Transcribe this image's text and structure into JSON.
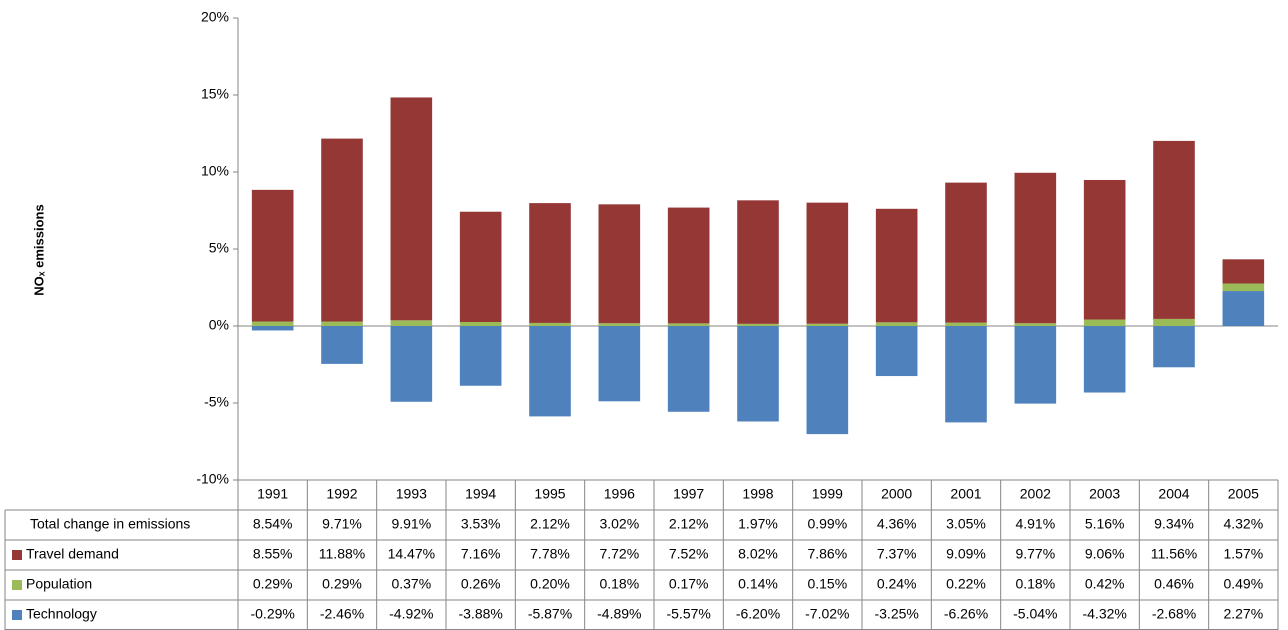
{
  "chart_data": {
    "type": "bar",
    "stacked": true,
    "y_label": "NOₓ emissions",
    "categories": [
      "1991",
      "1992",
      "1993",
      "1994",
      "1995",
      "1996",
      "1997",
      "1998",
      "1999",
      "2000",
      "2001",
      "2002",
      "2003",
      "2004",
      "2005"
    ],
    "total": {
      "name": "Total change in emissions",
      "values": [
        8.54,
        9.71,
        9.91,
        3.53,
        2.12,
        3.02,
        2.12,
        1.97,
        0.99,
        4.36,
        3.05,
        4.91,
        5.16,
        9.34,
        4.32
      ],
      "value_labels": [
        "8.54%",
        "9.71%",
        "9.91%",
        "3.53%",
        "2.12%",
        "3.02%",
        "2.12%",
        "1.97%",
        "0.99%",
        "4.36%",
        "3.05%",
        "4.91%",
        "5.16%",
        "9.34%",
        "4.32%"
      ]
    },
    "series": [
      {
        "name": "Travel demand",
        "color": "#953735",
        "values": [
          8.55,
          11.88,
          14.47,
          7.16,
          7.78,
          7.72,
          7.52,
          8.02,
          7.86,
          7.37,
          9.09,
          9.77,
          9.06,
          11.56,
          1.57
        ],
        "value_labels": [
          "8.55%",
          "11.88%",
          "14.47%",
          "7.16%",
          "7.78%",
          "7.72%",
          "7.52%",
          "8.02%",
          "7.86%",
          "7.37%",
          "9.09%",
          "9.77%",
          "9.06%",
          "11.56%",
          "1.57%"
        ]
      },
      {
        "name": "Population",
        "color": "#9bbb59",
        "values": [
          0.29,
          0.29,
          0.37,
          0.26,
          0.2,
          0.18,
          0.17,
          0.14,
          0.15,
          0.24,
          0.22,
          0.18,
          0.42,
          0.46,
          0.49
        ],
        "value_labels": [
          "0.29%",
          "0.29%",
          "0.37%",
          "0.26%",
          "0.20%",
          "0.18%",
          "0.17%",
          "0.14%",
          "0.15%",
          "0.24%",
          "0.22%",
          "0.18%",
          "0.42%",
          "0.46%",
          "0.49%"
        ]
      },
      {
        "name": "Technology",
        "color": "#4f81bd",
        "values": [
          -0.29,
          -2.46,
          -4.92,
          -3.88,
          -5.87,
          -4.89,
          -5.57,
          -6.2,
          -7.02,
          -3.25,
          -6.26,
          -5.04,
          -4.32,
          -2.68,
          2.27
        ],
        "value_labels": [
          "-0.29%",
          "-2.46%",
          "-4.92%",
          "-3.88%",
          "-5.87%",
          "-4.89%",
          "-5.57%",
          "-6.20%",
          "-7.02%",
          "-3.25%",
          "-6.26%",
          "-5.04%",
          "-4.32%",
          "-2.68%",
          "2.27%"
        ]
      }
    ],
    "ylim": [
      -10,
      20
    ],
    "yticks": [
      {
        "value": -10,
        "label": "-10%"
      },
      {
        "value": -5,
        "label": "-5%"
      },
      {
        "value": 0,
        "label": "0%"
      },
      {
        "value": 5,
        "label": "5%"
      },
      {
        "value": 10,
        "label": "10%"
      },
      {
        "value": 15,
        "label": "15%"
      },
      {
        "value": 20,
        "label": "20%"
      }
    ]
  }
}
